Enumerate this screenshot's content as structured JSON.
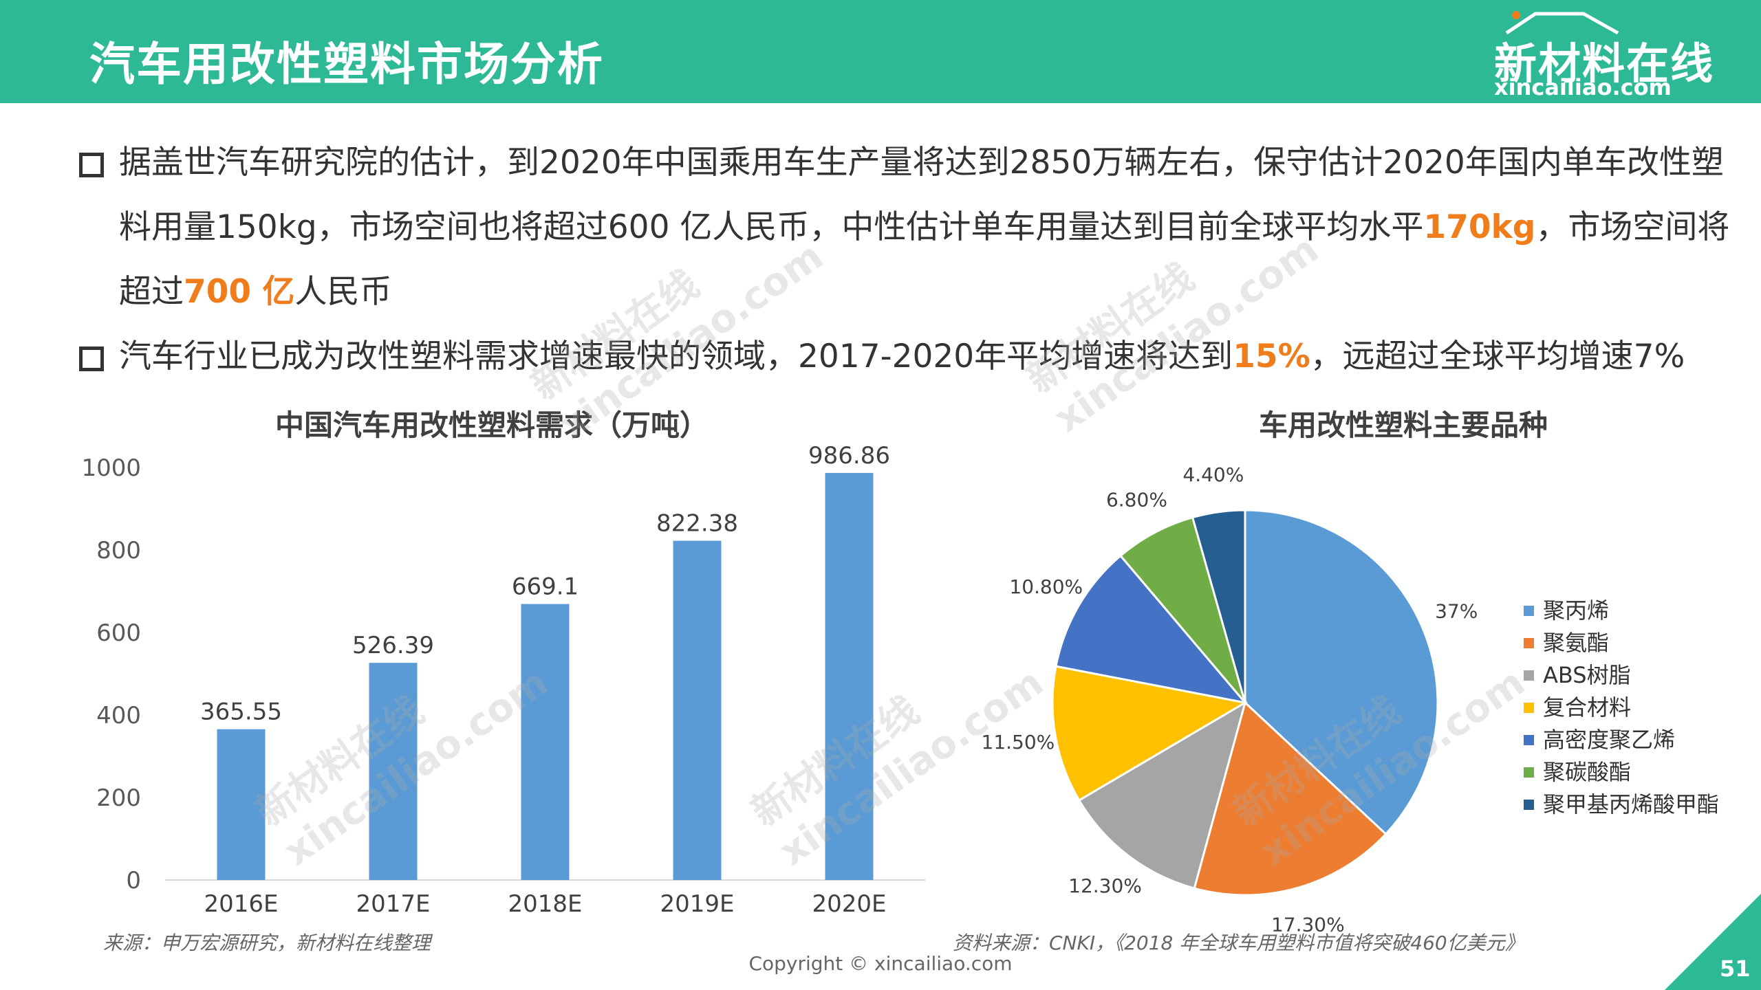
{
  "header": {
    "title": "汽车用改性塑料市场分析",
    "logo_name": "新材料在线",
    "logo_url": "xincailiao.com"
  },
  "bullets": [
    {
      "segments": [
        {
          "text": "据盖世汽车研究院的估计，到2020年中国乘用车生产量将达到2850万辆左右，保守估计2020年国内单车改性塑料用量150kg，市场空间也将超过600  亿人民币，中性估计单车用量达到目前全球平均水平",
          "hl": false
        },
        {
          "text": "170kg",
          "hl": true
        },
        {
          "text": "，市场空间将超过",
          "hl": false
        },
        {
          "text": "700 亿",
          "hl": true
        },
        {
          "text": "人民币",
          "hl": false
        }
      ]
    },
    {
      "segments": [
        {
          "text": "汽车行业已成为改性塑料需求增速最快的领域，2017-2020年平均增速将达到",
          "hl": false
        },
        {
          "text": "15%",
          "hl": true
        },
        {
          "text": "，远超过全球平均增速7%",
          "hl": false
        }
      ]
    }
  ],
  "colors": {
    "header": "#2eb996",
    "highlight": "#f07d1c",
    "bar": "#5b9bd5"
  },
  "chart_data": [
    {
      "type": "bar",
      "title": "中国汽车用改性塑料需求（万吨）",
      "categories": [
        "2016E",
        "2017E",
        "2018E",
        "2019E",
        "2020E"
      ],
      "values": [
        365.55,
        526.39,
        669.1,
        822.38,
        986.86
      ],
      "value_labels": [
        "365.55",
        "526.39",
        "669.1",
        "822.38",
        "986.86"
      ],
      "ylim": [
        0,
        1000
      ],
      "yticks": [
        "0",
        "200",
        "400",
        "600",
        "800",
        "1000"
      ],
      "grid": false,
      "legend": "none"
    },
    {
      "type": "pie",
      "title": "车用改性塑料主要品种",
      "labels": [
        "聚丙烯",
        "聚氨酯",
        "ABS树脂",
        "复合材料",
        "高密度聚乙烯",
        "聚碳酸酯",
        "聚甲基丙烯酸甲酯"
      ],
      "values": [
        37,
        17.3,
        12.3,
        11.5,
        10.8,
        6.8,
        4.4
      ],
      "value_labels": [
        "37%",
        "17.30%",
        "12.30%",
        "11.50%",
        "10.80%",
        "6.80%",
        "4.40%"
      ],
      "colors": [
        "#5b9bd5",
        "#ed7d31",
        "#a5a5a5",
        "#ffc000",
        "#4472c4",
        "#70ad47",
        "#255e91"
      ],
      "legend": "right"
    }
  ],
  "sources": {
    "left": "来源：申万宏源研究，新材料在线整理",
    "right": "资料来源：CNKI，《2018 年全球车用塑料市值将突破460亿美元》"
  },
  "copyright": "Copyright © xincailiao.com",
  "page_number": "51",
  "watermark": {
    "line1": "新材料在线",
    "line2": "xincailiao.com"
  }
}
